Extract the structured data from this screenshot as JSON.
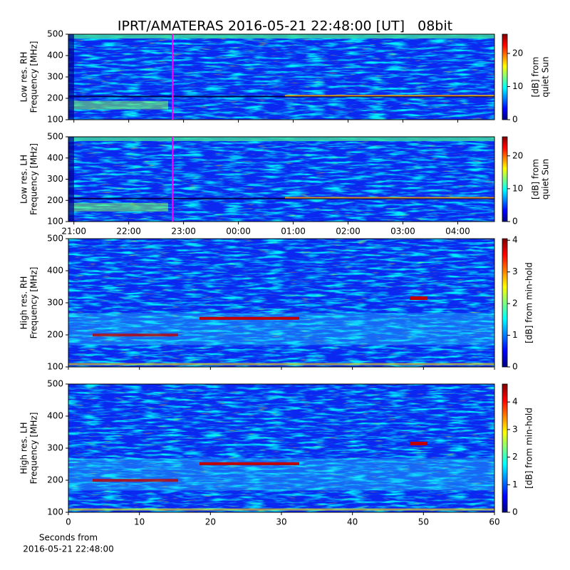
{
  "figure": {
    "title": "IPRT/AMATERAS 2016-05-21 22:48:00 [UT]   08bit"
  },
  "chart_data": [
    {
      "type": "spectrogram",
      "ylabel": [
        "Low res. RH",
        "Frequency [MHz]"
      ],
      "ylim": [
        100,
        500
      ],
      "yticks": [
        100,
        200,
        300,
        400,
        500
      ],
      "xlim": [
        20.9,
        28.67
      ],
      "xticks": [
        21,
        22,
        23,
        24,
        25,
        26,
        27,
        28
      ],
      "show_xtick_labels": false,
      "marker_x": 22.8,
      "marker_color": "#ff00ff",
      "colorbar_label": [
        "[dB] from",
        "quiet Sun"
      ],
      "clim": [
        0,
        25.8
      ],
      "cticks": [
        0,
        10,
        20
      ]
    },
    {
      "type": "spectrogram",
      "ylabel": [
        "Low res. LH",
        "Frequency [MHz]"
      ],
      "ylim": [
        100,
        500
      ],
      "yticks": [
        100,
        200,
        300,
        400,
        500
      ],
      "xlim": [
        20.9,
        28.67
      ],
      "xticks": [
        {
          "value": 21,
          "label": "21:00"
        },
        {
          "value": 22,
          "label": "22:00"
        },
        {
          "value": 23,
          "label": "23:00"
        },
        {
          "value": 24,
          "label": "00:00"
        },
        {
          "value": 25,
          "label": "01:00"
        },
        {
          "value": 26,
          "label": "02:00"
        },
        {
          "value": 27,
          "label": "03:00"
        },
        {
          "value": 28,
          "label": "04:00"
        }
      ],
      "show_xtick_labels": true,
      "marker_x": 22.8,
      "marker_color": "#ff00ff",
      "colorbar_label": [
        "[dB] from",
        "quiet Sun"
      ],
      "clim": [
        0,
        25.8
      ],
      "cticks": [
        0,
        10,
        20
      ]
    },
    {
      "type": "spectrogram",
      "ylabel": [
        "High res. RH",
        "Frequency [MHz]"
      ],
      "ylim": [
        100,
        500
      ],
      "yticks": [
        100,
        200,
        300,
        400,
        500
      ],
      "xlim": [
        0,
        60
      ],
      "xticks": [
        0,
        10,
        20,
        30,
        40,
        50,
        60
      ],
      "show_xtick_labels": false,
      "colorbar_label": [
        "[dB] from min-hold"
      ],
      "clim": [
        0,
        4.05
      ],
      "cticks": [
        0,
        1,
        2,
        3,
        4
      ]
    },
    {
      "type": "spectrogram",
      "ylabel": [
        "High res. LH",
        "Frequency [MHz]"
      ],
      "ylim": [
        100,
        500
      ],
      "yticks": [
        100,
        200,
        300,
        400,
        500
      ],
      "xlim": [
        0,
        60
      ],
      "xticks": [
        0,
        10,
        20,
        30,
        40,
        50,
        60
      ],
      "show_xtick_labels": true,
      "xlabel": [
        "Seconds from",
        "2016-05-21 22:48:00"
      ],
      "colorbar_label": [
        "[dB] from min-hold"
      ],
      "clim": [
        0,
        4.65
      ],
      "cticks": [
        0,
        1,
        2,
        3,
        4
      ]
    }
  ]
}
